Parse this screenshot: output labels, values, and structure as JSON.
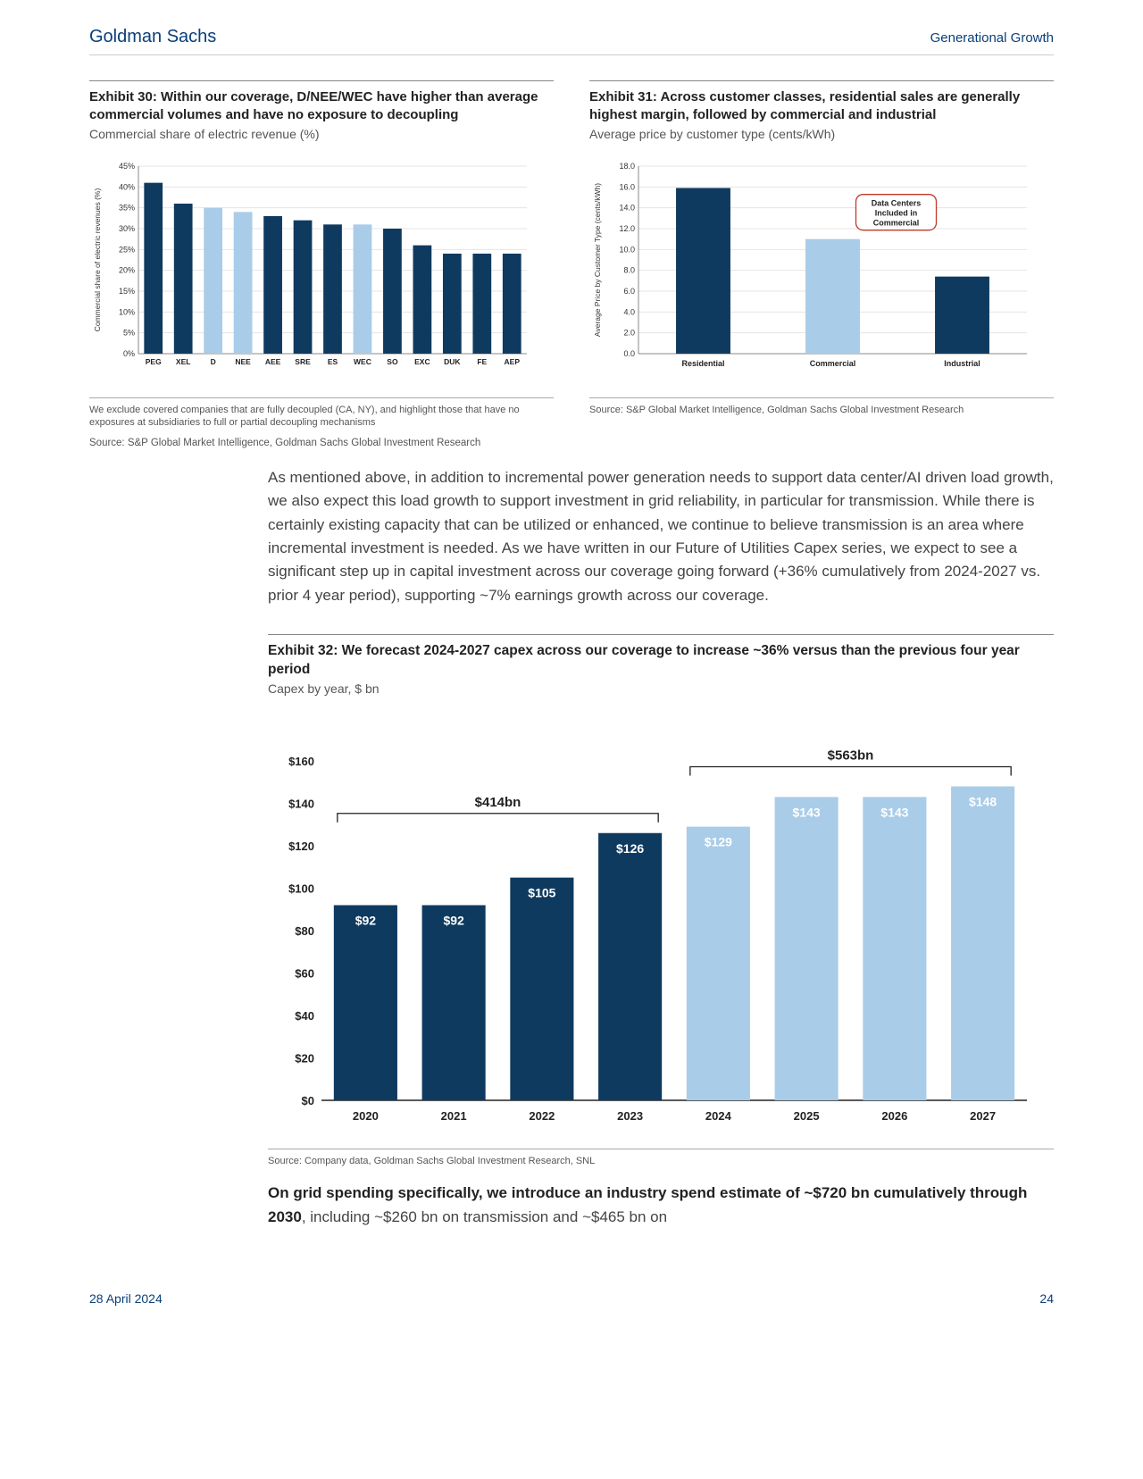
{
  "header": {
    "brand": "Goldman Sachs",
    "doc_title": "Generational Growth"
  },
  "exhibit30": {
    "title": "Exhibit 30: Within our coverage, D/NEE/WEC have higher than average commercial volumes and have no exposure to decoupling",
    "subtitle": "Commercial share of electric revenue (%)",
    "yaxis_label": "Commercial share of electric revenues (%)",
    "ylim": [
      0,
      45
    ],
    "ytick_step": 5,
    "ytick_suffix": "%",
    "categories": [
      "PEG",
      "XEL",
      "D",
      "NEE",
      "AEE",
      "SRE",
      "ES",
      "WEC",
      "SO",
      "EXC",
      "DUK",
      "FE",
      "AEP"
    ],
    "values": [
      41,
      36,
      35,
      34,
      33,
      32,
      31,
      31,
      30,
      26,
      24,
      24,
      24
    ],
    "bar_colors": [
      "#0f3a5f",
      "#0f3a5f",
      "#a9cce8",
      "#a9cce8",
      "#0f3a5f",
      "#0f3a5f",
      "#0f3a5f",
      "#a9cce8",
      "#0f3a5f",
      "#0f3a5f",
      "#0f3a5f",
      "#0f3a5f",
      "#0f3a5f"
    ],
    "grid_color": "#e5e5e5",
    "axis_color": "#888",
    "tick_font": 9,
    "cat_font": 8.5,
    "note": "We exclude covered companies that are fully decoupled (CA, NY), and highlight those that have no exposures at subsidiaries to full or partial decoupling mechanisms",
    "source": "Source: S&P Global Market Intelligence, Goldman Sachs Global Investment Research"
  },
  "exhibit31": {
    "title": "Exhibit 31: Across customer classes, residential sales are generally highest margin, followed by commercial and industrial",
    "subtitle": "Average price by customer type (cents/kWh)",
    "yaxis_label": "Average Price by Customer Type (cents/kWh)",
    "ylim": [
      0,
      18
    ],
    "ytick_step": 2,
    "categories": [
      "Residential",
      "Commercial",
      "Industrial"
    ],
    "values": [
      15.9,
      11.0,
      7.4
    ],
    "bar_colors": [
      "#0f3a5f",
      "#a9cce8",
      "#0f3a5f"
    ],
    "grid_color": "#e5e5e5",
    "axis_color": "#888",
    "tick_font": 9,
    "cat_font": 9,
    "annotation": {
      "line1": "Data Centers",
      "line2": "Included in",
      "line3": "Commercial"
    },
    "source": "Source: S&P Global Market Intelligence, Goldman Sachs Global Investment Research"
  },
  "paragraph1": "As mentioned above, in addition to incremental power generation needs to support data center/AI driven load growth, we also expect this load growth to support investment in grid reliability, in particular for transmission. While there is certainly existing capacity that can be utilized or enhanced, we continue to believe transmission is an area where incremental investment is needed. As we have written in our Future of Utilities Capex series, we expect to see a significant step up in capital investment across our coverage going forward (+36% cumulatively from 2024-2027 vs. prior 4 year period), supporting ~7% earnings growth across our coverage.",
  "exhibit32": {
    "title": "Exhibit 32: We forecast 2024-2027 capex across our coverage to increase ~36% versus than the previous four year period",
    "subtitle": "Capex by year, $ bn",
    "ylim": [
      0,
      160
    ],
    "ytick_step": 20,
    "ytick_prefix": "$",
    "categories": [
      "2020",
      "2021",
      "2022",
      "2023",
      "2024",
      "2025",
      "2026",
      "2027"
    ],
    "values": [
      92,
      92,
      105,
      126,
      129,
      143,
      143,
      148
    ],
    "value_labels": [
      "$92",
      "$92",
      "$105",
      "$126",
      "$129",
      "$143",
      "$143",
      "$148"
    ],
    "bar_colors": [
      "#0f3a5f",
      "#0f3a5f",
      "#0f3a5f",
      "#0f3a5f",
      "#a9cce8",
      "#a9cce8",
      "#a9cce8",
      "#a9cce8"
    ],
    "group1_label": "$414bn",
    "group2_label": "$563bn",
    "cat_font": 13,
    "tick_font": 13,
    "label_font": 14,
    "source": "Source: Company data, Goldman Sachs Global Investment Research, SNL"
  },
  "conclusion": {
    "bold": "On grid spending specifically, we introduce an industry spend estimate of ~$720 bn cumulatively through 2030",
    "rest": ", including ~$260 bn on transmission and ~$465 bn on"
  },
  "footer": {
    "date": "28 April 2024",
    "page": "24"
  },
  "colors": {
    "brand": "#0a3f7a",
    "dark_bar": "#0f3a5f",
    "light_bar": "#a9cce8"
  }
}
